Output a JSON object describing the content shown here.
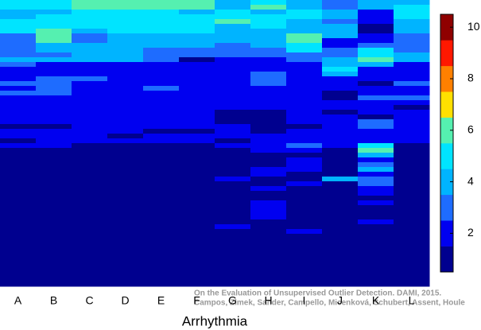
{
  "chart_data": {
    "type": "heatmap",
    "x_label": "Arrhythmia",
    "annotations": [
      "On the Evaluation of Unsupervised Outlier Detection. DAMI, 2015.",
      "Campos, Zimek, Sander, Campello, Micenková, Schubert, Assent, Houle"
    ],
    "categories": [
      "A",
      "B",
      "C",
      "D",
      "E",
      "F",
      "G",
      "H",
      "I",
      "J",
      "K",
      "L"
    ],
    "values": [
      [
        5,
        5,
        4,
        4,
        5,
        5,
        5,
        3,
        3,
        3,
        3,
        3,
        4,
        3,
        2,
        2,
        2,
        3,
        2,
        3,
        2,
        2,
        2,
        2,
        2,
        2,
        1,
        2,
        2,
        1,
        2,
        1,
        1,
        1,
        1,
        1,
        1,
        1,
        1,
        1,
        1,
        1,
        1,
        1,
        1,
        1,
        1,
        1,
        1,
        1,
        1,
        1,
        1,
        1,
        1,
        1,
        1,
        1,
        1,
        1
      ],
      [
        5,
        5,
        4,
        5,
        5,
        5,
        6,
        6,
        6,
        4,
        4,
        3,
        4,
        2,
        2,
        2,
        3,
        3,
        3,
        3,
        2,
        2,
        2,
        2,
        2,
        2,
        1,
        2,
        2,
        2,
        2,
        1,
        1,
        1,
        1,
        1,
        1,
        1,
        1,
        1,
        1,
        1,
        1,
        1,
        1,
        1,
        1,
        1,
        1,
        1,
        1,
        1,
        1,
        1,
        1,
        1,
        1,
        1,
        1,
        1
      ],
      [
        6,
        6,
        5,
        5,
        5,
        5,
        4,
        3,
        3,
        4,
        4,
        4,
        4,
        2,
        2,
        2,
        3,
        2,
        2,
        2,
        2,
        2,
        2,
        2,
        2,
        2,
        2,
        2,
        2,
        2,
        1,
        1,
        1,
        1,
        1,
        1,
        1,
        1,
        1,
        1,
        1,
        1,
        1,
        1,
        1,
        1,
        1,
        1,
        1,
        1,
        1,
        1,
        1,
        1,
        1,
        1,
        1,
        1,
        1,
        1
      ],
      [
        6,
        6,
        5,
        5,
        5,
        5,
        5,
        4,
        4,
        4,
        4,
        4,
        4,
        2,
        2,
        2,
        2,
        2,
        2,
        2,
        2,
        2,
        2,
        2,
        2,
        2,
        2,
        2,
        1,
        2,
        1,
        1,
        1,
        1,
        1,
        1,
        1,
        1,
        1,
        1,
        1,
        1,
        1,
        1,
        1,
        1,
        1,
        1,
        1,
        1,
        1,
        1,
        1,
        1,
        1,
        1,
        1,
        1,
        1,
        1
      ],
      [
        6,
        6,
        5,
        5,
        5,
        5,
        5,
        4,
        4,
        4,
        3,
        3,
        3,
        2,
        2,
        2,
        2,
        2,
        3,
        2,
        2,
        2,
        2,
        2,
        2,
        2,
        2,
        1,
        2,
        2,
        1,
        1,
        1,
        1,
        1,
        1,
        1,
        1,
        1,
        1,
        1,
        1,
        1,
        1,
        1,
        1,
        1,
        1,
        1,
        1,
        1,
        1,
        1,
        1,
        1,
        1,
        1,
        1,
        1,
        1
      ],
      [
        6,
        6,
        4,
        5,
        5,
        5,
        5,
        4,
        4,
        4,
        3,
        3,
        1,
        2,
        2,
        2,
        2,
        2,
        2,
        2,
        2,
        2,
        2,
        2,
        2,
        2,
        2,
        1,
        2,
        2,
        1,
        1,
        1,
        1,
        1,
        1,
        1,
        1,
        1,
        1,
        1,
        1,
        1,
        1,
        1,
        1,
        1,
        1,
        1,
        1,
        1,
        1,
        1,
        1,
        1,
        1,
        1,
        1,
        1,
        1
      ],
      [
        4,
        4,
        5,
        5,
        6,
        4,
        4,
        4,
        4,
        3,
        3,
        3,
        2,
        2,
        2,
        2,
        2,
        2,
        2,
        2,
        2,
        2,
        2,
        1,
        1,
        1,
        2,
        2,
        2,
        1,
        2,
        1,
        1,
        1,
        1,
        1,
        1,
        2,
        1,
        1,
        1,
        1,
        1,
        1,
        1,
        1,
        1,
        2,
        1,
        1,
        1,
        1,
        1,
        1,
        1,
        1,
        1,
        1,
        1,
        1
      ],
      [
        5,
        6,
        4,
        5,
        5,
        5,
        4,
        4,
        4,
        4,
        3,
        3,
        2,
        2,
        2,
        3,
        3,
        3,
        2,
        2,
        2,
        2,
        2,
        1,
        1,
        1,
        1,
        1,
        2,
        2,
        2,
        2,
        1,
        1,
        1,
        2,
        2,
        1,
        1,
        2,
        1,
        1,
        2,
        2,
        2,
        2,
        1,
        1,
        1,
        1,
        1,
        1,
        1,
        1,
        1,
        1,
        1,
        1,
        1,
        1
      ],
      [
        4,
        4,
        5,
        5,
        4,
        4,
        4,
        6,
        6,
        5,
        5,
        3,
        3,
        2,
        2,
        2,
        2,
        2,
        2,
        2,
        2,
        2,
        2,
        2,
        2,
        2,
        1,
        2,
        2,
        2,
        3,
        2,
        1,
        2,
        2,
        2,
        1,
        1,
        2,
        1,
        1,
        1,
        1,
        1,
        1,
        1,
        1,
        1,
        2,
        1,
        1,
        1,
        1,
        1,
        1,
        1,
        1,
        1,
        1,
        1
      ],
      [
        3,
        3,
        4,
        4,
        3,
        4,
        4,
        4,
        2,
        2,
        3,
        3,
        4,
        4,
        5,
        4,
        2,
        2,
        2,
        1,
        1,
        2,
        2,
        1,
        2,
        2,
        2,
        2,
        2,
        2,
        2,
        1,
        1,
        1,
        1,
        1,
        1,
        4,
        1,
        1,
        1,
        1,
        1,
        1,
        1,
        1,
        1,
        1,
        1,
        1,
        1,
        1,
        1,
        1,
        1,
        1,
        1,
        1,
        1,
        1
      ],
      [
        4,
        4,
        2,
        2,
        2,
        1,
        1,
        2,
        2,
        3,
        5,
        5,
        6,
        4,
        2,
        2,
        2,
        1,
        2,
        2,
        3,
        2,
        2,
        2,
        1,
        3,
        3,
        2,
        2,
        2,
        5,
        6,
        4,
        2,
        3,
        4,
        2,
        3,
        3,
        2,
        2,
        1,
        2,
        1,
        1,
        1,
        2,
        1,
        1,
        1,
        1,
        1,
        1,
        1,
        1,
        1,
        1,
        1,
        1,
        1
      ],
      [
        4,
        5,
        5,
        5,
        4,
        4,
        4,
        3,
        3,
        3,
        3,
        4,
        4,
        2,
        2,
        2,
        2,
        3,
        2,
        2,
        3,
        2,
        1,
        2,
        2,
        2,
        2,
        2,
        2,
        2,
        1,
        1,
        1,
        1,
        1,
        1,
        1,
        1,
        1,
        1,
        1,
        1,
        1,
        1,
        1,
        1,
        1,
        1,
        1,
        1,
        1,
        1,
        1,
        1,
        1,
        1,
        1,
        1,
        1,
        1
      ]
    ],
    "colors": [
      "#00008f",
      "#0000f0",
      "#1e6cff",
      "#00b4ff",
      "#00e4ff",
      "#55f0b0",
      "#ffe000",
      "#ff8000",
      "#ff1800",
      "#8f0000"
    ],
    "zlim": [
      0.5,
      10.5
    ],
    "zticks": [
      2,
      4,
      6,
      8,
      10
    ]
  }
}
